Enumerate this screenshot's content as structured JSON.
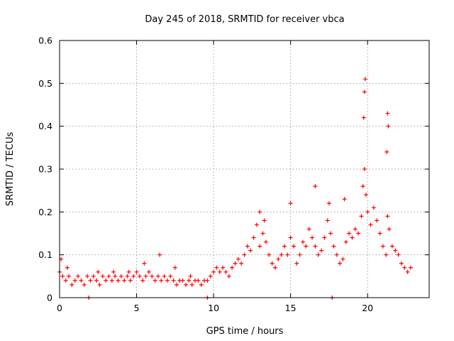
{
  "chart_data": {
    "type": "scatter",
    "title": "Day 245 of 2018, SRMTID for receiver vbca",
    "xlabel": "GPS time / hours",
    "ylabel": "SRMTID / TECUs",
    "xlim": [
      0,
      24
    ],
    "ylim": [
      0,
      0.6
    ],
    "xticks": [
      0,
      5,
      10,
      15,
      20
    ],
    "yticks": [
      0,
      0.1,
      0.2,
      0.3,
      0.4,
      0.5,
      0.6
    ],
    "grid": true,
    "marker": "+",
    "color": "#ff0000",
    "series": [
      {
        "name": "SRMTID",
        "description_points_note": "sampled representative points",
        "x": [
          0.0,
          0.2,
          0.4,
          0.6,
          0.8,
          1.0,
          1.2,
          1.4,
          1.6,
          1.8,
          2.0,
          2.2,
          2.4,
          2.6,
          2.8,
          3.0,
          3.2,
          3.4,
          3.6,
          3.8,
          4.0,
          4.2,
          4.4,
          4.6,
          4.8,
          5.0,
          5.2,
          5.4,
          5.6,
          5.8,
          6.0,
          6.2,
          6.4,
          6.6,
          6.8,
          7.0,
          7.2,
          7.4,
          7.6,
          7.8,
          8.0,
          8.2,
          8.4,
          8.6,
          8.8,
          9.0,
          9.2,
          9.4,
          9.6,
          9.8,
          10.0,
          10.2,
          10.4,
          10.6,
          10.8,
          11.0,
          11.2,
          11.4,
          11.6,
          11.8,
          12.0,
          12.2,
          12.4,
          12.6,
          12.8,
          13.0,
          13.2,
          13.4,
          13.6,
          13.8,
          14.0,
          14.2,
          14.4,
          14.6,
          14.8,
          15.0,
          15.2,
          15.4,
          15.6,
          15.8,
          16.0,
          16.2,
          16.4,
          16.6,
          16.8,
          17.0,
          17.2,
          17.4,
          17.6,
          17.8,
          18.0,
          18.2,
          18.4,
          18.6,
          18.8,
          19.0,
          19.2,
          19.4,
          19.6,
          19.7,
          19.8,
          19.9,
          20.0,
          20.2,
          20.4,
          20.6,
          20.8,
          21.0,
          21.2,
          21.3,
          21.4,
          21.6,
          21.8,
          22.0,
          22.2,
          22.4,
          22.6,
          22.8,
          1.9,
          9.6,
          17.7,
          0.1,
          0.5,
          2.5,
          3.5,
          4.5,
          5.5,
          6.5,
          7.5,
          8.5,
          13.0,
          13.3,
          15.0,
          16.6,
          17.5,
          18.5,
          19.75,
          19.8,
          19.85,
          21.3,
          21.35,
          21.25
        ],
        "y": [
          0.06,
          0.05,
          0.04,
          0.05,
          0.03,
          0.04,
          0.05,
          0.04,
          0.03,
          0.05,
          0.04,
          0.05,
          0.04,
          0.03,
          0.05,
          0.04,
          0.05,
          0.04,
          0.05,
          0.04,
          0.05,
          0.04,
          0.05,
          0.04,
          0.05,
          0.06,
          0.05,
          0.04,
          0.05,
          0.06,
          0.05,
          0.04,
          0.05,
          0.04,
          0.05,
          0.04,
          0.05,
          0.04,
          0.03,
          0.04,
          0.04,
          0.03,
          0.04,
          0.03,
          0.04,
          0.04,
          0.03,
          0.04,
          0.04,
          0.05,
          0.06,
          0.07,
          0.06,
          0.07,
          0.06,
          0.05,
          0.07,
          0.08,
          0.09,
          0.08,
          0.1,
          0.12,
          0.11,
          0.14,
          0.17,
          0.12,
          0.15,
          0.13,
          0.1,
          0.08,
          0.07,
          0.09,
          0.1,
          0.12,
          0.1,
          0.14,
          0.12,
          0.08,
          0.1,
          0.13,
          0.12,
          0.16,
          0.14,
          0.12,
          0.1,
          0.11,
          0.14,
          0.18,
          0.15,
          0.12,
          0.1,
          0.08,
          0.09,
          0.13,
          0.15,
          0.14,
          0.16,
          0.15,
          0.19,
          0.26,
          0.3,
          0.24,
          0.2,
          0.17,
          0.21,
          0.18,
          0.15,
          0.12,
          0.1,
          0.19,
          0.16,
          0.12,
          0.11,
          0.1,
          0.08,
          0.07,
          0.06,
          0.07,
          0.0,
          0.0,
          0.0,
          0.09,
          0.07,
          0.06,
          0.06,
          0.06,
          0.08,
          0.1,
          0.07,
          0.05,
          0.2,
          0.18,
          0.22,
          0.26,
          0.22,
          0.23,
          0.42,
          0.48,
          0.51,
          0.43,
          0.4,
          0.34
        ]
      }
    ]
  }
}
